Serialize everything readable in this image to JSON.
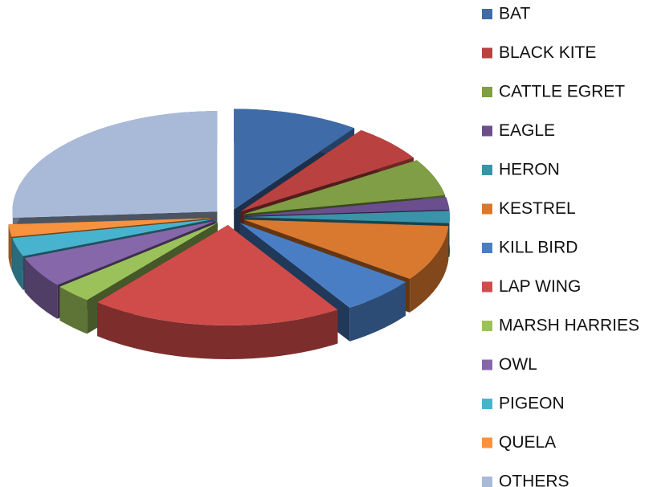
{
  "chart_data": {
    "type": "pie3d",
    "categories": [
      "BAT",
      "BLACK KITE",
      "CATTLE EGRET",
      "EAGLE",
      "HERON",
      "KESTREL",
      "KILL BIRD",
      "LAP WING",
      "MARSH HARRIES",
      "OWL",
      "PIGEON",
      "QUELA",
      "OTHERS"
    ],
    "values": [
      10,
      6,
      6,
      2,
      2,
      9,
      6,
      20,
      3,
      5,
      3,
      2,
      26
    ],
    "colors": [
      "#3f6ba8",
      "#b9413f",
      "#7f9e45",
      "#6a4e8e",
      "#3a93a8",
      "#d9782f",
      "#4a7ec4",
      "#d04c4a",
      "#9bc25a",
      "#8567aa",
      "#48b3cf",
      "#f7923f",
      "#a9bad9"
    ],
    "legend": "right"
  }
}
